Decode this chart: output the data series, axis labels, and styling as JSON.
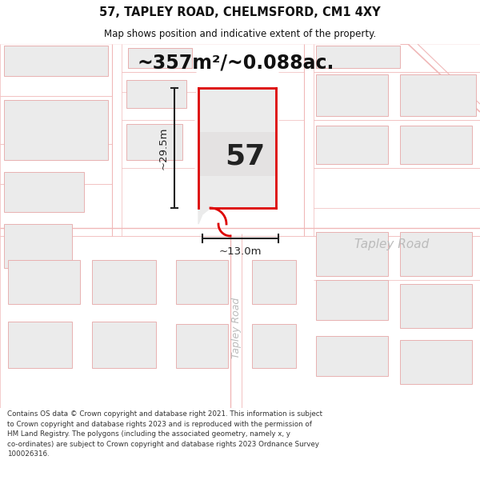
{
  "title_line1": "57, TAPLEY ROAD, CHELMSFORD, CM1 4XY",
  "title_line2": "Map shows position and indicative extent of the property.",
  "area_text": "~357m²/~0.088ac.",
  "plot_number": "57",
  "dim_vertical": "~29.5m",
  "dim_horizontal": "~13.0m",
  "road_label_diagonal": "Tapley Road",
  "road_label_horizontal": "Tapley Road",
  "disclaimer": "Contains OS data © Crown copyright and database right 2021. This information is subject\nto Crown copyright and database rights 2023 and is reproduced with the permission of\nHM Land Registry. The polygons (including the associated geometry, namely x, y\nco-ordinates) are subject to Crown copyright and database rights 2023 Ordnance Survey\n100026316.",
  "map_bg": "#f7f6f6",
  "road_color": "#f0b8b8",
  "building_fill": "#ebebeb",
  "building_edge": "#e8b0b0",
  "plot_fill": "#ebebeb",
  "plot_border": "#dd0000",
  "dim_color": "#222222",
  "road_label_color": "#bbbbbb",
  "title_color": "#111111",
  "area_text_color": "#111111",
  "plot_num_color": "#222222",
  "disclaimer_color": "#333333",
  "figsize": [
    6.0,
    6.25
  ],
  "dpi": 100
}
